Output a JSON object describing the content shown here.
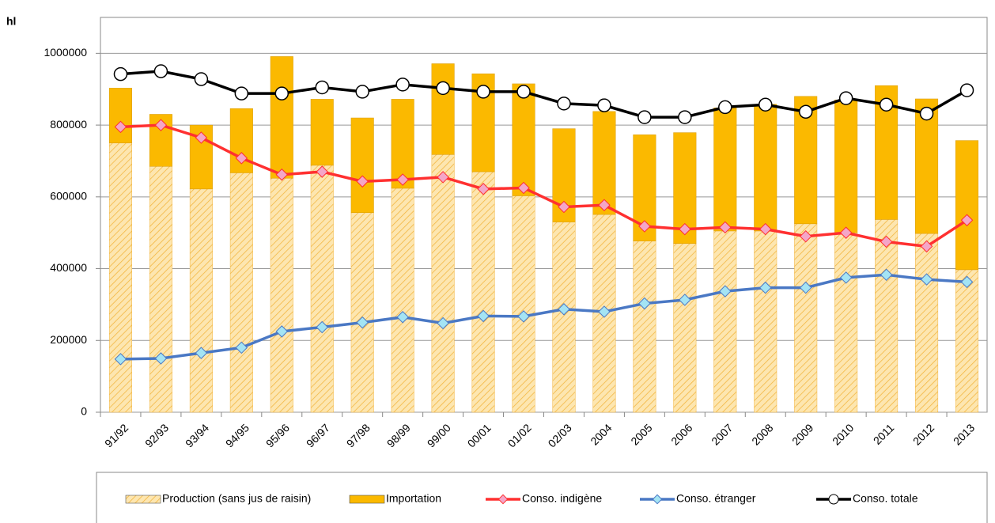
{
  "chart_data": {
    "type": "bar",
    "stacked": true,
    "y_label": "hl",
    "categories": [
      "91/92",
      "92/93",
      "93/94",
      "94/95",
      "95/96",
      "96/97",
      "97/98",
      "98/99",
      "99/00",
      "00/01",
      "01/02",
      "02/03",
      "2004",
      "2005",
      "2006",
      "2007",
      "2008",
      "2009",
      "2010",
      "2011",
      "2012",
      "2013"
    ],
    "ylim": [
      0,
      1100000
    ],
    "yticks": [
      0,
      200000,
      400000,
      600000,
      800000,
      1000000
    ],
    "grid": true,
    "series": [
      {
        "name": "Production (sans jus de raisin)",
        "kind": "bar",
        "color": "#fde6b0",
        "hatch_color": "#f2b43c",
        "values": [
          750000,
          685000,
          622000,
          667000,
          652000,
          688000,
          556000,
          624000,
          718000,
          670000,
          603000,
          530000,
          551000,
          477000,
          470000,
          505000,
          505000,
          525000,
          500000,
          537000,
          498000,
          397000
        ]
      },
      {
        "name": "Importation",
        "kind": "bar",
        "color": "#fbb900",
        "values": [
          153000,
          145000,
          178000,
          179000,
          339000,
          184000,
          264000,
          248000,
          253000,
          273000,
          312000,
          260000,
          287000,
          296000,
          309000,
          343000,
          353000,
          355000,
          370000,
          373000,
          375000,
          360000
        ]
      },
      {
        "name": "Conso. indigène",
        "kind": "line",
        "color": "#ff3030",
        "marker_color": "#f4a6c8",
        "values": [
          795000,
          800000,
          765000,
          708000,
          662000,
          670000,
          643000,
          648000,
          655000,
          622000,
          625000,
          572000,
          577000,
          518000,
          510000,
          515000,
          510000,
          490000,
          500000,
          475000,
          462000,
          535000
        ]
      },
      {
        "name": "Conso. étranger",
        "kind": "line",
        "color": "#4a78c4",
        "marker_color": "#a4e4f4",
        "values": [
          148000,
          150000,
          165000,
          180000,
          225000,
          237000,
          250000,
          265000,
          248000,
          268000,
          267000,
          287000,
          280000,
          303000,
          313000,
          337000,
          347000,
          347000,
          375000,
          383000,
          370000,
          363000
        ]
      },
      {
        "name": "Conso. totale",
        "kind": "line",
        "color": "#000000",
        "marker_color": "#ffffff",
        "values": [
          942000,
          950000,
          928000,
          888000,
          888000,
          905000,
          893000,
          913000,
          903000,
          893000,
          893000,
          860000,
          855000,
          822000,
          822000,
          850000,
          857000,
          837000,
          875000,
          857000,
          832000,
          897000
        ]
      }
    ]
  }
}
